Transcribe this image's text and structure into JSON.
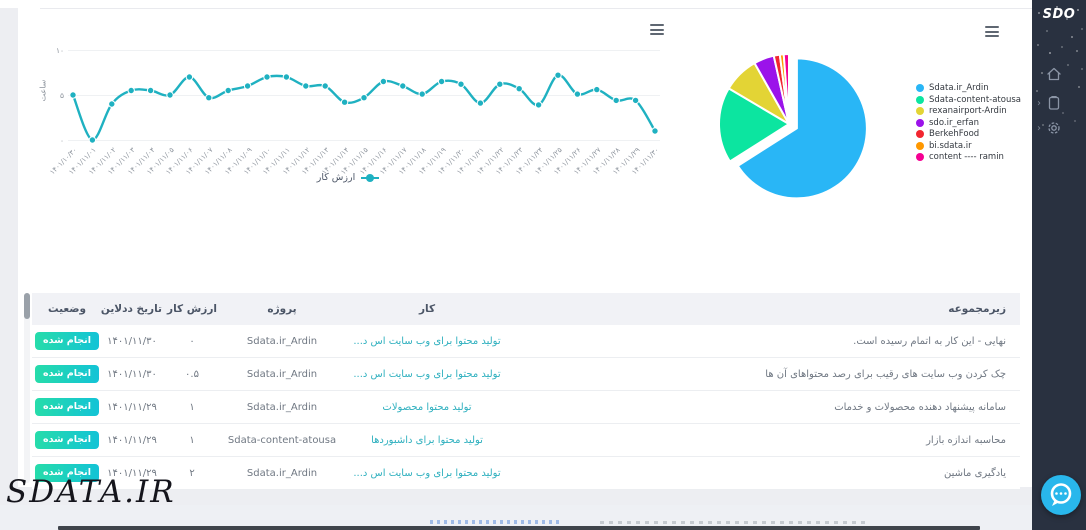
{
  "watermark": "SDATA.IR",
  "sidebar": {
    "logo": "SDO",
    "nav_icons": [
      "home-icon",
      "clipboard-icon",
      "gear-icon"
    ],
    "chat_icon": "chat-bubble-icon",
    "submenu_chevron": "›"
  },
  "ui_icons": {
    "chart_menu": "hamburger-menu",
    "line_legend_marker": "teal-dot-line"
  },
  "chart_data": {
    "line": {
      "type": "line",
      "series_name": "ارزش کار",
      "ylabel": "ساعت",
      "y_ticks": [
        "۱۰",
        "۵",
        "۰"
      ],
      "ylim": [
        0,
        10
      ],
      "color": "#1fb1c1",
      "grid": true,
      "categories": [
        "۱۴۰۱/۱۰/۳۰",
        "۱۴۰۱/۱۱/۰۱",
        "۱۴۰۱/۱۱/۰۲",
        "۱۴۰۱/۱۱/۰۳",
        "۱۴۰۱/۱۱/۰۴",
        "۱۴۰۱/۱۱/۰۵",
        "۱۴۰۱/۱۱/۰۶",
        "۱۴۰۱/۱۱/۰۷",
        "۱۴۰۱/۱۱/۰۸",
        "۱۴۰۱/۱۱/۰۹",
        "۱۴۰۱/۱۱/۱۰",
        "۱۴۰۱/۱۱/۱۱",
        "۱۴۰۱/۱۱/۱۲",
        "۱۴۰۱/۱۱/۱۳",
        "۱۴۰۱/۱۱/۱۴",
        "۱۴۰۱/۱۱/۱۵",
        "۱۴۰۱/۱۱/۱۶",
        "۱۴۰۱/۱۱/۱۷",
        "۱۴۰۱/۱۱/۱۸",
        "۱۴۰۱/۱۱/۱۹",
        "۱۴۰۱/۱۱/۲۰",
        "۱۴۰۱/۱۱/۲۱",
        "۱۴۰۱/۱۱/۲۲",
        "۱۴۰۱/۱۱/۲۳",
        "۱۴۰۱/۱۱/۲۴",
        "۱۴۰۱/۱۱/۲۵",
        "۱۴۰۱/۱۱/۲۶",
        "۱۴۰۱/۱۱/۲۷",
        "۱۴۰۱/۱۱/۲۸",
        "۱۴۰۱/۱۱/۲۹",
        "۱۴۰۱/۱۱/۳۰"
      ],
      "values": [
        5,
        0,
        4,
        5.5,
        5.5,
        5,
        7,
        4.7,
        5.5,
        6,
        7,
        7,
        6,
        6,
        4.2,
        4.7,
        6.5,
        6,
        5.1,
        6.5,
        6.2,
        4.1,
        6.2,
        5.7,
        3.9,
        7.2,
        5.1,
        5.6,
        4.4,
        4.4,
        1
      ]
    },
    "pie": {
      "type": "pie",
      "legend_position": "right",
      "series": [
        {
          "name": "Sdata.ir_Ardin",
          "value": 66,
          "color": "#29b6f6",
          "exploded": true
        },
        {
          "name": "Sdata-content-atousa",
          "value": 17.5,
          "color": "#0ce5a0",
          "exploded": false
        },
        {
          "name": "rexanairport-Ardin",
          "value": 8.3,
          "color": "#e3d435",
          "exploded": false
        },
        {
          "name": "sdo.ir_erfan",
          "value": 4.7,
          "color": "#9b13ea",
          "exploded": false
        },
        {
          "name": "BerkehFood",
          "value": 1.4,
          "color": "#f22630",
          "exploded": false
        },
        {
          "name": "bi.sdata.ir",
          "value": 0.9,
          "color": "#ff9800",
          "exploded": false
        },
        {
          "name": "content ---- ramin",
          "value": 1.2,
          "color": "#f50093",
          "exploded": false
        }
      ]
    }
  },
  "table": {
    "headers": [
      "زیرمجموعه",
      "کار",
      "پروژه",
      "ارزش کار",
      "تاریخ ددلاین",
      "وضعیت"
    ],
    "rows": [
      {
        "subcategory": "نهایی - این کار به اتمام رسیده است.",
        "work": "تولید محتوا برای وب سایت اس د...",
        "project": "Sdata.ir_Ardin",
        "value": "۰",
        "deadline": "۱۴۰۱/۱۱/۳۰",
        "status": "انجام شده"
      },
      {
        "subcategory": "چک کردن وب سایت های رقیب برای رصد محتواهای آن ها",
        "work": "تولید محتوا برای وب سایت اس د...",
        "project": "Sdata.ir_Ardin",
        "value": "۰.۵",
        "deadline": "۱۴۰۱/۱۱/۳۰",
        "status": "انجام شده"
      },
      {
        "subcategory": "سامانه پیشنهاد دهنده محصولات و خدمات",
        "work": "تولید محتوا محصولات",
        "project": "Sdata.ir_Ardin",
        "value": "۱",
        "deadline": "۱۴۰۱/۱۱/۲۹",
        "status": "انجام شده"
      },
      {
        "subcategory": "محاسبه اندازه بازار",
        "work": "تولید محتوا برای داشبوردها",
        "project": "Sdata-content-atousa",
        "value": "۱",
        "deadline": "۱۴۰۱/۱۱/۲۹",
        "status": "انجام شده"
      },
      {
        "subcategory": "یادگیری ماشین",
        "work": "تولید محتوا برای وب سایت اس د...",
        "project": "Sdata.ir_Ardin",
        "value": "۲",
        "deadline": "۱۴۰۱/۱۱/۲۹",
        "status": "انجام شده"
      }
    ]
  }
}
